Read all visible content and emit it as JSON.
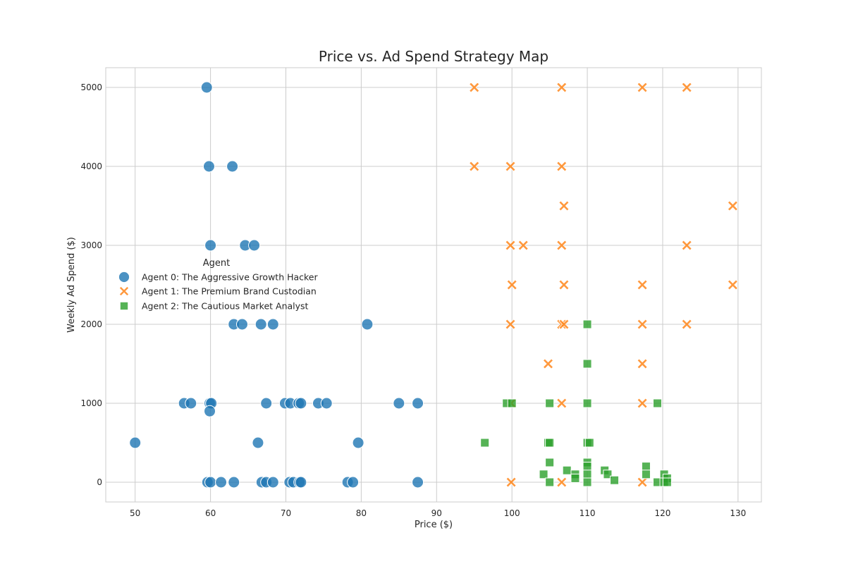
{
  "chart_data": {
    "type": "scatter",
    "title": "Price vs. Ad Spend Strategy Map",
    "xlabel": "Price ($)",
    "ylabel": "Weekly Ad Spend ($)",
    "xlim": [
      46.1,
      133.1
    ],
    "ylim": [
      -250,
      5250
    ],
    "xticks": [
      50,
      60,
      70,
      80,
      90,
      100,
      110,
      120,
      130
    ],
    "yticks": [
      0,
      1000,
      2000,
      3000,
      4000,
      5000
    ],
    "grid": true,
    "legend": {
      "title": "Agent",
      "placement": "center-left"
    },
    "series": [
      {
        "name": "Agent 0: The Aggressive Growth Hacker",
        "marker": "circle",
        "color": "#1f77b4",
        "points": [
          [
            59.5,
            5000
          ],
          [
            59.8,
            4000
          ],
          [
            62.9,
            4000
          ],
          [
            60.0,
            3000
          ],
          [
            64.6,
            3000
          ],
          [
            65.8,
            3000
          ],
          [
            63.1,
            2000
          ],
          [
            64.2,
            2000
          ],
          [
            66.7,
            2000
          ],
          [
            68.3,
            2000
          ],
          [
            80.8,
            2000
          ],
          [
            56.5,
            1000
          ],
          [
            57.4,
            1000
          ],
          [
            59.9,
            1000
          ],
          [
            60.1,
            1000
          ],
          [
            59.9,
            900
          ],
          [
            67.4,
            1000
          ],
          [
            69.9,
            1000
          ],
          [
            70.6,
            1000
          ],
          [
            71.7,
            1000
          ],
          [
            72.0,
            1000
          ],
          [
            74.3,
            1000
          ],
          [
            75.4,
            1000
          ],
          [
            85.0,
            1000
          ],
          [
            87.5,
            1000
          ],
          [
            50.0,
            500
          ],
          [
            66.3,
            500
          ],
          [
            79.6,
            500
          ],
          [
            59.6,
            0
          ],
          [
            60.0,
            0
          ],
          [
            61.4,
            0
          ],
          [
            63.1,
            0
          ],
          [
            66.8,
            0
          ],
          [
            67.4,
            0
          ],
          [
            68.3,
            0
          ],
          [
            70.5,
            0
          ],
          [
            71.0,
            0
          ],
          [
            71.8,
            0
          ],
          [
            72.0,
            0
          ],
          [
            78.2,
            0
          ],
          [
            78.9,
            0
          ],
          [
            87.5,
            0
          ]
        ]
      },
      {
        "name": "Agent 1: The Premium Brand Custodian",
        "marker": "x",
        "color": "#ff7f0e",
        "points": [
          [
            95.0,
            5000
          ],
          [
            106.6,
            5000
          ],
          [
            117.3,
            5000
          ],
          [
            123.2,
            5000
          ],
          [
            95.0,
            4000
          ],
          [
            99.8,
            4000
          ],
          [
            106.6,
            4000
          ],
          [
            106.9,
            3500
          ],
          [
            129.3,
            3500
          ],
          [
            99.8,
            3000
          ],
          [
            101.5,
            3000
          ],
          [
            106.6,
            3000
          ],
          [
            123.2,
            3000
          ],
          [
            100.0,
            2500
          ],
          [
            106.9,
            2500
          ],
          [
            117.3,
            2500
          ],
          [
            129.3,
            2500
          ],
          [
            99.8,
            2000
          ],
          [
            106.6,
            2000
          ],
          [
            106.9,
            2000
          ],
          [
            117.3,
            2000
          ],
          [
            123.2,
            2000
          ],
          [
            104.8,
            1500
          ],
          [
            117.3,
            1500
          ],
          [
            99.9,
            1000
          ],
          [
            106.6,
            1000
          ],
          [
            117.3,
            1000
          ],
          [
            99.9,
            0
          ],
          [
            106.6,
            0
          ],
          [
            117.3,
            0
          ]
        ]
      },
      {
        "name": "Agent 2: The Cautious Market Analyst",
        "marker": "square",
        "color": "#2ca02c",
        "points": [
          [
            110.0,
            2000
          ],
          [
            110.0,
            1500
          ],
          [
            99.3,
            1000
          ],
          [
            100.0,
            1000
          ],
          [
            105.0,
            1000
          ],
          [
            110.0,
            1000
          ],
          [
            119.3,
            1000
          ],
          [
            96.4,
            500
          ],
          [
            104.8,
            500
          ],
          [
            105.0,
            500
          ],
          [
            110.0,
            500
          ],
          [
            110.3,
            500
          ],
          [
            105.0,
            250
          ],
          [
            110.0,
            250
          ],
          [
            110.0,
            200
          ],
          [
            117.8,
            200
          ],
          [
            107.3,
            150
          ],
          [
            112.3,
            150
          ],
          [
            104.2,
            100
          ],
          [
            108.4,
            100
          ],
          [
            110.0,
            100
          ],
          [
            112.7,
            100
          ],
          [
            117.8,
            100
          ],
          [
            120.2,
            100
          ],
          [
            108.4,
            50
          ],
          [
            120.6,
            50
          ],
          [
            113.6,
            25
          ],
          [
            105.0,
            0
          ],
          [
            110.0,
            0
          ],
          [
            119.3,
            0
          ],
          [
            120.2,
            0
          ],
          [
            120.6,
            0
          ]
        ]
      }
    ]
  }
}
